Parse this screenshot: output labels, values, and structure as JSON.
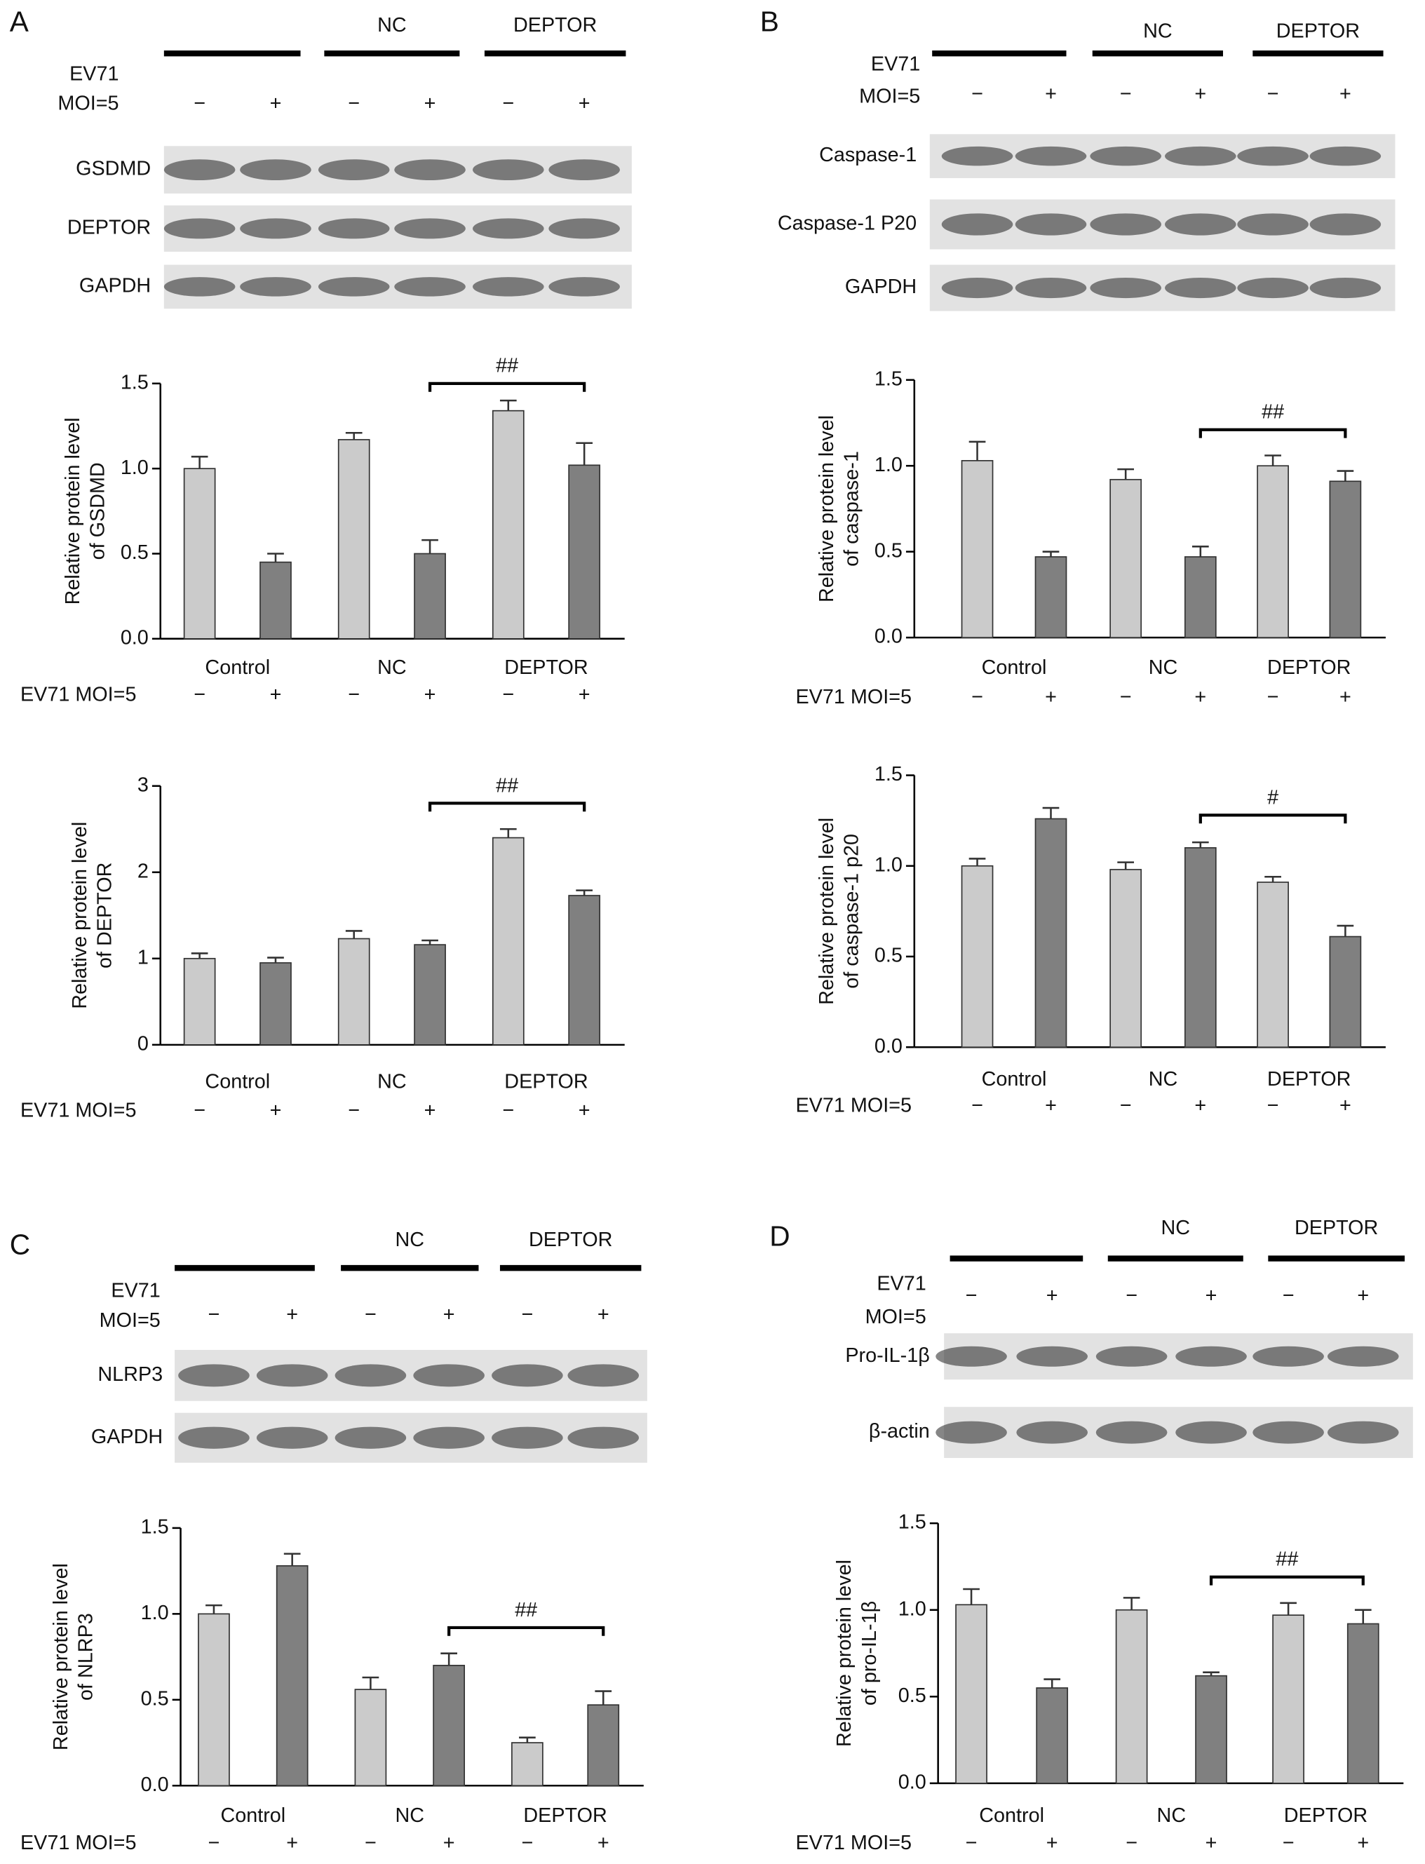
{
  "blots": [
    {
      "letter": "A",
      "groups": [
        "NC",
        "DEPTOR"
      ],
      "treatment": "EV71",
      "dose": "MOI=5",
      "lanes": [
        "−",
        "+",
        "−",
        "+",
        "−",
        "+"
      ],
      "rows": [
        "GSDMD",
        "DEPTOR",
        "GAPDH"
      ]
    },
    {
      "letter": "B",
      "groups": [
        "NC",
        "DEPTOR"
      ],
      "treatment": "EV71",
      "dose": "MOI=5",
      "lanes": [
        "−",
        "+",
        "−",
        "+",
        "−",
        "+"
      ],
      "rows": [
        "Caspase-1",
        "Caspase-1 P20",
        "GAPDH"
      ]
    },
    {
      "letter": "C",
      "groups": [
        "NC",
        "DEPTOR"
      ],
      "treatment": "EV71",
      "dose": "MOI=5",
      "lanes": [
        "−",
        "+",
        "−",
        "+",
        "−",
        "+"
      ],
      "rows": [
        "NLRP3",
        "GAPDH"
      ]
    },
    {
      "letter": "D",
      "groups": [
        "NC",
        "DEPTOR"
      ],
      "treatment": "EV71",
      "dose": "MOI=5",
      "lanes": [
        "−",
        "+",
        "−",
        "+",
        "−",
        "+"
      ],
      "rows": [
        "Pro-IL-1β",
        "β-actin"
      ]
    }
  ],
  "chart_data": [
    {
      "type": "bar",
      "ylabel": [
        "Relative protein level",
        "of GSDMD"
      ],
      "categories": [
        "Control",
        "NC",
        "DEPTOR"
      ],
      "xlabel": "EV71 MOI=5",
      "x_sub_labels": [
        "−",
        "+",
        "−",
        "+",
        "−",
        "+"
      ],
      "series": [
        {
          "color": "#cbcbcb",
          "values": [
            1.0,
            1.17,
            1.34
          ],
          "errors": [
            0.07,
            0.04,
            0.06
          ]
        },
        {
          "color": "#808080",
          "values": [
            0.45,
            0.5,
            1.02
          ],
          "errors": [
            0.05,
            0.08,
            0.13
          ]
        }
      ],
      "ylim": [
        0,
        1.5
      ],
      "yticks": [
        {
          "value": 0,
          "label": "0.0"
        },
        0.5,
        {
          "value": 1,
          "label": "1.0"
        },
        1.5
      ],
      "bracket": "##"
    },
    {
      "type": "bar",
      "ylabel": [
        "Relative protein level",
        "of DEPTOR"
      ],
      "categories": [
        "Control",
        "NC",
        "DEPTOR"
      ],
      "xlabel": "EV71 MOI=5",
      "x_sub_labels": [
        "−",
        "+",
        "−",
        "+",
        "−",
        "+"
      ],
      "series": [
        {
          "color": "#cbcbcb",
          "values": [
            1.0,
            1.23,
            2.4
          ],
          "errors": [
            0.06,
            0.09,
            0.1
          ]
        },
        {
          "color": "#808080",
          "values": [
            0.95,
            1.16,
            1.73
          ],
          "errors": [
            0.06,
            0.05,
            0.06
          ]
        }
      ],
      "ylim": [
        0,
        3
      ],
      "yticks": [
        0,
        1,
        2,
        3
      ],
      "bracket": "##"
    },
    {
      "type": "bar",
      "ylabel": [
        "Relative protein level",
        "of caspase-1"
      ],
      "categories": [
        "Control",
        "NC",
        "DEPTOR"
      ],
      "xlabel": "EV71 MOI=5",
      "x_sub_labels": [
        "−",
        "+",
        "−",
        "+",
        "−",
        "+"
      ],
      "series": [
        {
          "color": "#cbcbcb",
          "values": [
            1.03,
            0.92,
            1.0
          ],
          "errors": [
            0.11,
            0.06,
            0.06
          ]
        },
        {
          "color": "#808080",
          "values": [
            0.47,
            0.47,
            0.91
          ],
          "errors": [
            0.03,
            0.06,
            0.06
          ]
        }
      ],
      "ylim": [
        0,
        1.5
      ],
      "yticks": [
        {
          "value": 0,
          "label": "0.0"
        },
        0.5,
        {
          "value": 1,
          "label": "1.0"
        },
        1.5
      ],
      "bracket": "##"
    },
    {
      "type": "bar",
      "ylabel": [
        "Relative protein level",
        "of caspase-1 p20"
      ],
      "categories": [
        "Control",
        "NC",
        "DEPTOR"
      ],
      "xlabel": "EV71 MOI=5",
      "x_sub_labels": [
        "−",
        "+",
        "−",
        "+",
        "−",
        "+"
      ],
      "series": [
        {
          "color": "#cbcbcb",
          "values": [
            1.0,
            0.98,
            0.91
          ],
          "errors": [
            0.04,
            0.04,
            0.03
          ]
        },
        {
          "color": "#808080",
          "values": [
            1.26,
            1.1,
            0.61
          ],
          "errors": [
            0.06,
            0.03,
            0.06
          ]
        }
      ],
      "ylim": [
        0,
        1.5
      ],
      "yticks": [
        {
          "value": 0,
          "label": "0.0"
        },
        0.5,
        {
          "value": 1,
          "label": "1.0"
        },
        1.5
      ],
      "bracket": "#"
    },
    {
      "type": "bar",
      "ylabel": [
        "Relative protein level",
        "of NLRP3"
      ],
      "categories": [
        "Control",
        "NC",
        "DEPTOR"
      ],
      "xlabel": "EV71 MOI=5",
      "x_sub_labels": [
        "−",
        "+",
        "−",
        "+",
        "−",
        "+"
      ],
      "series": [
        {
          "color": "#cbcbcb",
          "values": [
            1.0,
            0.56,
            0.25
          ],
          "errors": [
            0.05,
            0.07,
            0.03
          ]
        },
        {
          "color": "#808080",
          "values": [
            1.28,
            0.7,
            0.47
          ],
          "errors": [
            0.07,
            0.07,
            0.08
          ]
        }
      ],
      "ylim": [
        0,
        1.5
      ],
      "yticks": [
        {
          "value": 0,
          "label": "0.0"
        },
        0.5,
        {
          "value": 1,
          "label": "1.0"
        },
        1.5
      ],
      "bracket": "##"
    },
    {
      "type": "bar",
      "ylabel": [
        "Relative protein level",
        "of pro-IL-1β"
      ],
      "categories": [
        "Control",
        "NC",
        "DEPTOR"
      ],
      "xlabel": "EV71 MOI=5",
      "x_sub_labels": [
        "−",
        "+",
        "−",
        "+",
        "−",
        "+"
      ],
      "series": [
        {
          "color": "#cbcbcb",
          "values": [
            1.03,
            1.0,
            0.97
          ],
          "errors": [
            0.09,
            0.07,
            0.07
          ]
        },
        {
          "color": "#808080",
          "values": [
            0.55,
            0.62,
            0.92
          ],
          "errors": [
            0.05,
            0.02,
            0.08
          ]
        }
      ],
      "ylim": [
        0,
        1.5
      ],
      "yticks": [
        {
          "value": 0,
          "label": "0.0"
        },
        0.5,
        {
          "value": 1,
          "label": "1.0"
        },
        1.5
      ],
      "bracket": "##"
    }
  ]
}
